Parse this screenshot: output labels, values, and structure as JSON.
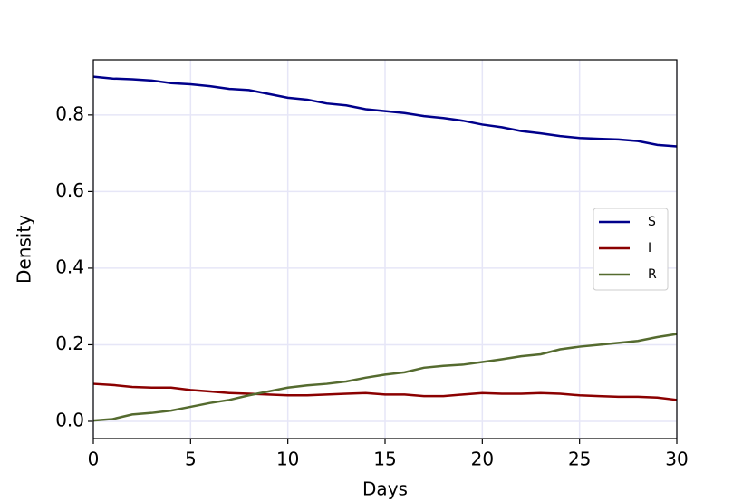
{
  "chart_data": {
    "type": "line",
    "x_label": "Days",
    "y_label": "Density",
    "x": [
      0,
      1,
      2,
      3,
      4,
      5,
      6,
      7,
      8,
      9,
      10,
      11,
      12,
      13,
      14,
      15,
      16,
      17,
      18,
      19,
      20,
      21,
      22,
      23,
      24,
      25,
      26,
      27,
      28,
      29,
      30
    ],
    "series": [
      {
        "name": "S",
        "color": "#00008b",
        "values": [
          0.9,
          0.895,
          0.893,
          0.89,
          0.883,
          0.88,
          0.875,
          0.868,
          0.865,
          0.855,
          0.845,
          0.84,
          0.83,
          0.825,
          0.815,
          0.81,
          0.805,
          0.797,
          0.792,
          0.785,
          0.775,
          0.768,
          0.758,
          0.752,
          0.745,
          0.74,
          0.738,
          0.736,
          0.732,
          0.722,
          0.718
        ]
      },
      {
        "name": "I",
        "color": "#8b0000",
        "values": [
          0.098,
          0.095,
          0.09,
          0.088,
          0.088,
          0.082,
          0.078,
          0.074,
          0.072,
          0.07,
          0.068,
          0.068,
          0.07,
          0.072,
          0.074,
          0.07,
          0.07,
          0.066,
          0.066,
          0.07,
          0.074,
          0.072,
          0.072,
          0.074,
          0.072,
          0.068,
          0.066,
          0.064,
          0.064,
          0.062,
          0.056
        ]
      },
      {
        "name": "R",
        "color": "#556b2f",
        "values": [
          0.002,
          0.006,
          0.018,
          0.022,
          0.028,
          0.038,
          0.048,
          0.056,
          0.068,
          0.078,
          0.088,
          0.094,
          0.098,
          0.104,
          0.114,
          0.122,
          0.128,
          0.14,
          0.145,
          0.148,
          0.155,
          0.162,
          0.17,
          0.175,
          0.188,
          0.195,
          0.2,
          0.205,
          0.21,
          0.22,
          0.228
        ]
      }
    ],
    "xlim": [
      0,
      30
    ],
    "xticks": [
      0,
      5,
      10,
      15,
      20,
      25,
      30
    ],
    "ylim": [
      -0.045,
      0.944
    ],
    "yticks": [
      {
        "value": 0,
        "label": "0.0"
      },
      0.2,
      0.4,
      0.6,
      0.8
    ],
    "grid": true,
    "legend": "right"
  }
}
